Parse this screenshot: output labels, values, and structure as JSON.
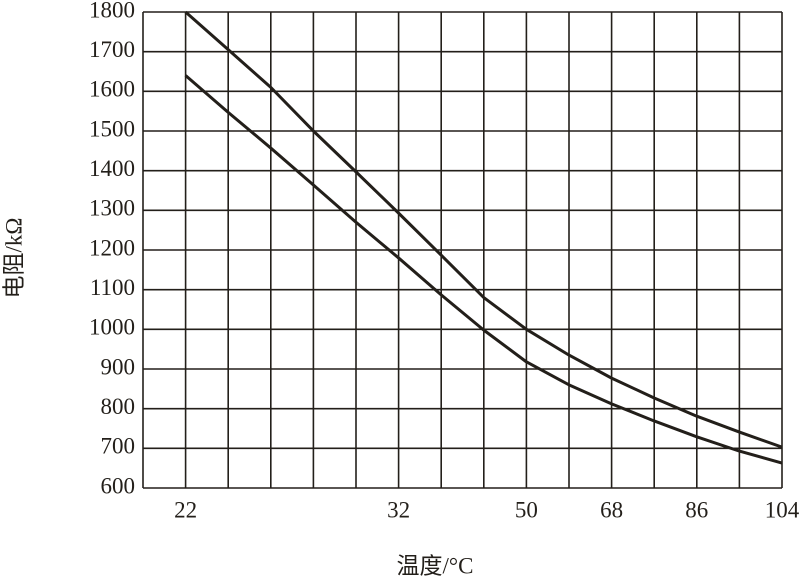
{
  "chart_data": {
    "type": "line",
    "xlabel": "温度/°C",
    "ylabel": "电阻/kΩ",
    "categories": [
      null,
      "22",
      null,
      null,
      null,
      null,
      "32",
      null,
      null,
      "50",
      null,
      "68",
      null,
      "86",
      null,
      "104"
    ],
    "series": [
      {
        "color": "#231f1a",
        "values": [
          null,
          1800,
          1705,
          1610,
          1500,
          1397,
          1293,
          1187,
          1080,
          1000,
          935,
          877,
          827,
          781,
          741,
          703
        ]
      },
      {
        "color": "#231f1a",
        "values": [
          null,
          1640,
          1547,
          1457,
          1364,
          1270,
          1180,
          1087,
          998,
          918,
          860,
          812,
          769,
          729,
          693,
          663
        ]
      }
    ],
    "ylim": [
      600,
      1800
    ],
    "yticks": [
      600,
      700,
      800,
      900,
      1000,
      1100,
      1200,
      1300,
      1400,
      1500,
      1600,
      1700,
      1800
    ],
    "grid": true
  }
}
